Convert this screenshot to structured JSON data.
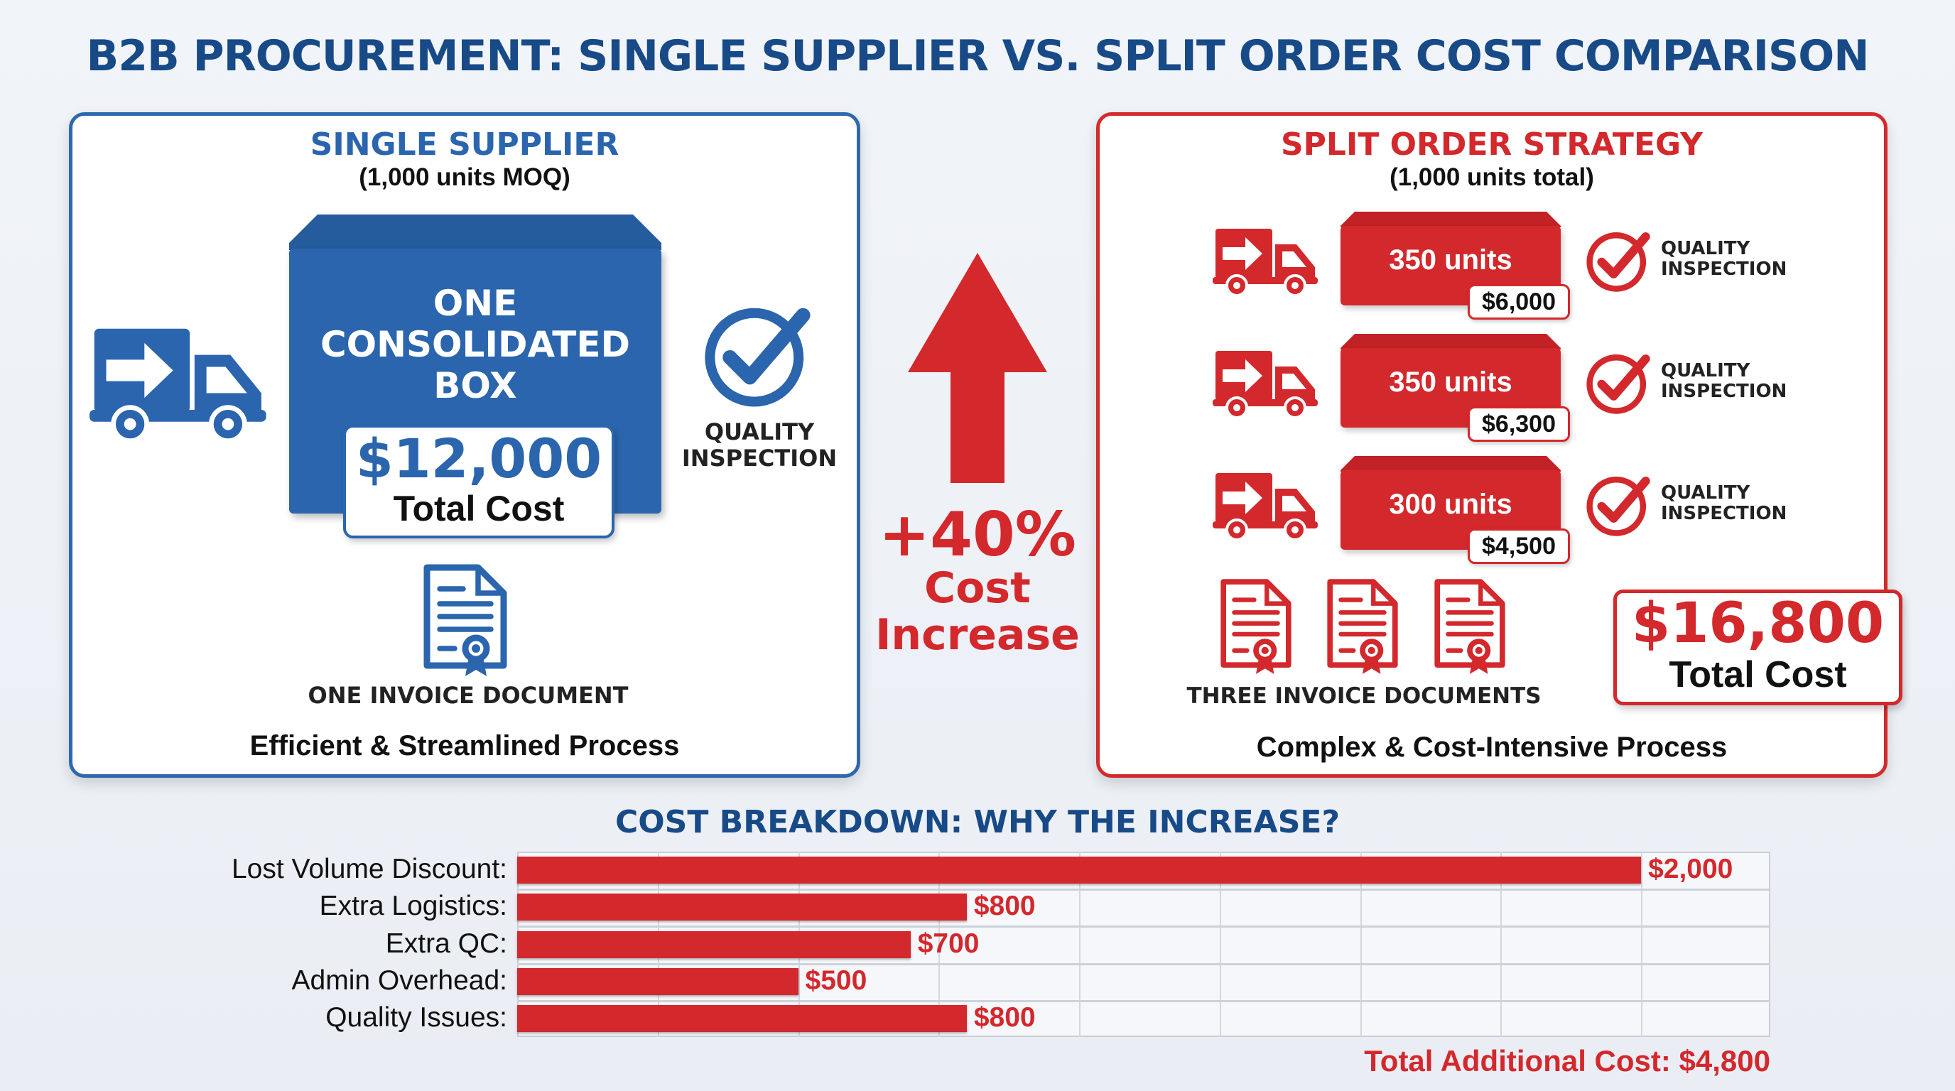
{
  "title": "B2B PROCUREMENT: SINGLE SUPPLIER VS. SPLIT ORDER COST COMPARISON",
  "colors": {
    "blue": "#2a65ad",
    "red": "#d3282c",
    "title": "#174a86"
  },
  "single": {
    "title": "SINGLE SUPPLIER",
    "subtitle": "(1,000 units MOQ)",
    "box_lines": [
      "ONE",
      "CONSOLIDATED",
      "BOX"
    ],
    "price": "$12,000",
    "price_label": "Total Cost",
    "quality": [
      "QUALITY",
      "INSPECTION"
    ],
    "invoice": "ONE INVOICE DOCUMENT",
    "footer": "Efficient & Streamlined Process",
    "icons": [
      "truck-icon",
      "check-circle-icon",
      "invoice-document-icon"
    ]
  },
  "middle": {
    "percent": "+40%",
    "line1": "Cost",
    "line2": "Increase",
    "icon": "arrow-up-icon"
  },
  "split": {
    "title": "SPLIT ORDER STRATEGY",
    "subtitle": "(1,000 units total)",
    "orders": [
      {
        "units": "350 units",
        "price": "$6,000",
        "quality": [
          "QUALITY",
          "INSPECTION"
        ]
      },
      {
        "units": "350 units",
        "price": "$6,300",
        "quality": [
          "QUALITY",
          "INSPECTION"
        ]
      },
      {
        "units": "300 units",
        "price": "$4,500",
        "quality": [
          "QUALITY",
          "INSPECTION"
        ]
      }
    ],
    "invoices": "THREE INVOICE DOCUMENTS",
    "total": "$16,800",
    "total_label": "Total Cost",
    "footer": "Complex & Cost-Intensive Process"
  },
  "chart_data": {
    "type": "bar",
    "orientation": "horizontal",
    "title": "COST BREAKDOWN: WHY THE INCREASE?",
    "categories": [
      "Lost Volume Discount:",
      "Extra Logistics:",
      "Extra QC:",
      "Admin Overhead:",
      "Quality Issues:"
    ],
    "values": [
      2000,
      800,
      700,
      500,
      800
    ],
    "value_labels": [
      "$2,000",
      "$800",
      "$700",
      "$500",
      "$800"
    ],
    "xlim": [
      0,
      2230
    ],
    "grid": true,
    "grid_step": 250,
    "bar_color": "#d3282c",
    "total_label": "Total Additional Cost: $4,800"
  }
}
